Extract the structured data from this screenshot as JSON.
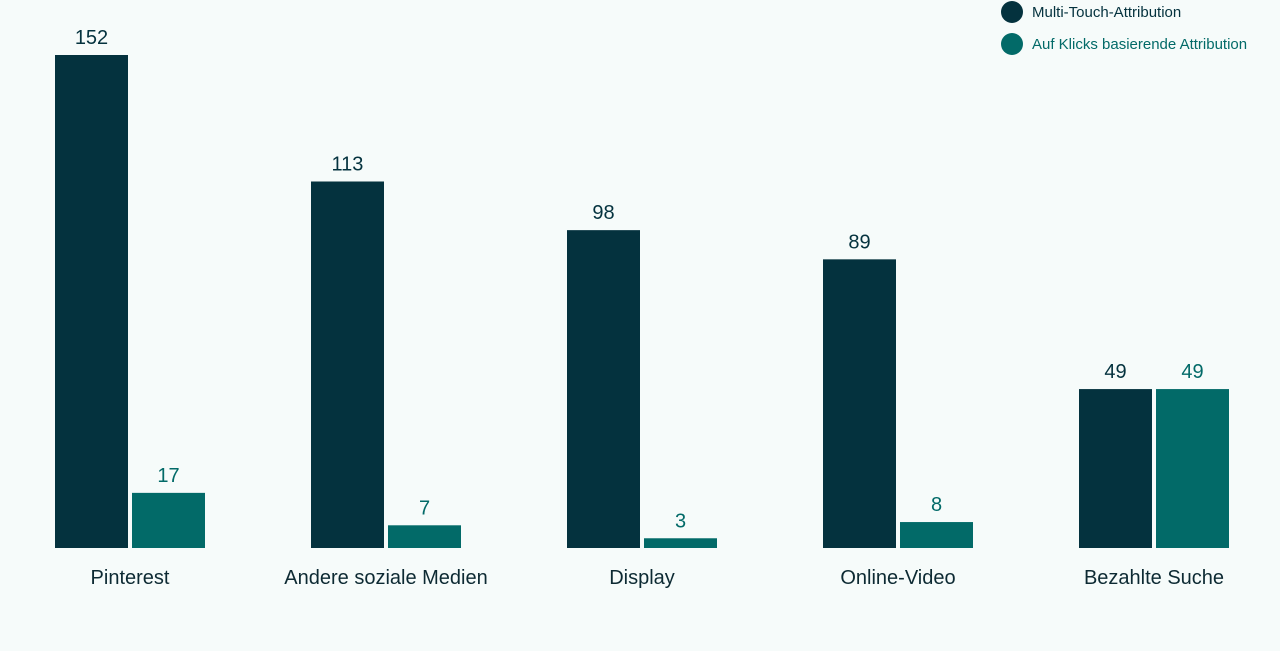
{
  "chart_data": {
    "type": "bar",
    "title": "",
    "xlabel": "",
    "ylabel": "",
    "ylim": [
      0,
      152
    ],
    "grid": false,
    "legend_position": "top-right",
    "categories": [
      "Pinterest",
      "Andere soziale Medien",
      "Display",
      "Online-Video",
      "Bezahlte Suche"
    ],
    "series": [
      {
        "name": "Multi-Touch-Attribution",
        "color": "#04323e",
        "values": [
          152,
          113,
          98,
          89,
          49
        ]
      },
      {
        "name": "Auf Klicks basierende Attribution",
        "color": "#026a68",
        "values": [
          17,
          7,
          3,
          8,
          49
        ]
      }
    ]
  },
  "colors": {
    "background": "#f6fbfa",
    "category_label": "#0d2a33"
  }
}
